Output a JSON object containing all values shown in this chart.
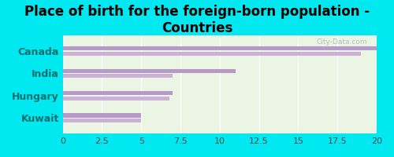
{
  "title": "Place of birth for the foreign-born population -\nCountries",
  "categories": [
    "Canada",
    "India",
    "Hungary",
    "Kuwait"
  ],
  "bar1_values": [
    20.0,
    11.0,
    7.0,
    5.0
  ],
  "bar2_values": [
    19.0,
    7.0,
    6.8,
    5.0
  ],
  "bar_color1": "#b89ac8",
  "bar_color2": "#cdb0d8",
  "background_chart": "#eaf5e4",
  "background_outside": "#00e8f0",
  "xlim": [
    0,
    20
  ],
  "xticks": [
    0,
    2.5,
    5,
    7.5,
    10,
    12.5,
    15,
    17.5,
    20
  ],
  "xtick_labels": [
    "0",
    "2.5",
    "5",
    "7.5",
    "10",
    "12.5",
    "15",
    "17.5",
    "20"
  ],
  "title_fontsize": 12,
  "label_fontsize": 9,
  "tick_fontsize": 8,
  "watermark": "City-Data.com"
}
